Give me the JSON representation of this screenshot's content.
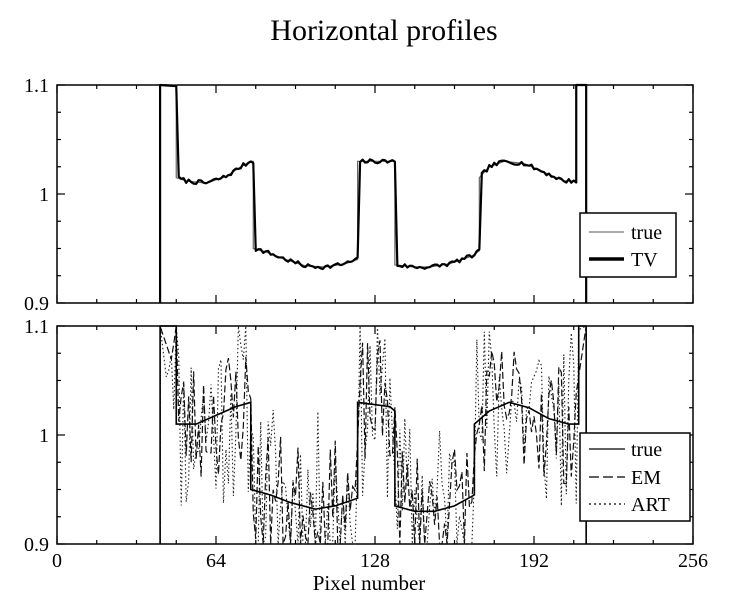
{
  "chart_data": [
    {
      "type": "line",
      "title": "Horizontal profiles",
      "panel": "top",
      "xlim": [
        0,
        256
      ],
      "ylim": [
        0.9,
        1.1
      ],
      "yticks": [
        "0.9",
        "1",
        "1.1"
      ],
      "legend": {
        "placement": "lower-right",
        "entries": [
          "true",
          "TV"
        ]
      },
      "series": [
        {
          "name": "true",
          "style": "thin-solid",
          "segments": "piecewise-profile"
        },
        {
          "name": "TV",
          "style": "thick-solid",
          "segments": "piecewise-profile"
        }
      ],
      "profile_points": [
        [
          41.5,
          0.9
        ],
        [
          41.5,
          1.1
        ],
        [
          48,
          1.1
        ],
        [
          48,
          1.015
        ],
        [
          52,
          1.012
        ],
        [
          60,
          1.01
        ],
        [
          68,
          1.016
        ],
        [
          74,
          1.025
        ],
        [
          78,
          1.03
        ],
        [
          79,
          1.03
        ],
        [
          79,
          0.95
        ],
        [
          84,
          0.947
        ],
        [
          92,
          0.94
        ],
        [
          100,
          0.934
        ],
        [
          108,
          0.933
        ],
        [
          116,
          0.936
        ],
        [
          121,
          0.94
        ],
        [
          121,
          1.03
        ],
        [
          136,
          1.03
        ],
        [
          136,
          0.935
        ],
        [
          144,
          0.933
        ],
        [
          150,
          0.933
        ],
        [
          158,
          0.936
        ],
        [
          167,
          0.943
        ],
        [
          170,
          0.948
        ],
        [
          170,
          1.015
        ],
        [
          174,
          1.025
        ],
        [
          180,
          1.03
        ],
        [
          188,
          1.028
        ],
        [
          196,
          1.02
        ],
        [
          204,
          1.012
        ],
        [
          209,
          1.012
        ],
        [
          209,
          1.1
        ],
        [
          213,
          1.1
        ],
        [
          213,
          0.9
        ]
      ]
    },
    {
      "type": "line",
      "panel": "bottom",
      "xlim": [
        0,
        256
      ],
      "ylim": [
        0.9,
        1.1
      ],
      "xticks": [
        "0",
        "64",
        "128",
        "192",
        "256"
      ],
      "yticks": [
        "0.9",
        "1",
        "1.1"
      ],
      "xlabel": "Pixel number",
      "legend": {
        "placement": "lower-right",
        "entries": [
          "true",
          "EM",
          "ART"
        ]
      },
      "series": [
        {
          "name": "true",
          "style": "solid"
        },
        {
          "name": "EM",
          "style": "dashed",
          "noise_amplitude": 0.06
        },
        {
          "name": "ART",
          "style": "dotted",
          "noise_amplitude": 0.09
        }
      ],
      "profile_points": [
        [
          41.5,
          0.9
        ],
        [
          41.5,
          1.1
        ],
        [
          48,
          1.1
        ],
        [
          48,
          1.01
        ],
        [
          56,
          1.01
        ],
        [
          64,
          1.018
        ],
        [
          72,
          1.026
        ],
        [
          78,
          1.03
        ],
        [
          78,
          0.95
        ],
        [
          86,
          0.945
        ],
        [
          94,
          0.938
        ],
        [
          104,
          0.932
        ],
        [
          112,
          0.935
        ],
        [
          121,
          0.942
        ],
        [
          121,
          1.03
        ],
        [
          134,
          1.026
        ],
        [
          136,
          1.022
        ],
        [
          136,
          0.935
        ],
        [
          144,
          0.93
        ],
        [
          152,
          0.93
        ],
        [
          160,
          0.935
        ],
        [
          168,
          0.945
        ],
        [
          168,
          1.01
        ],
        [
          174,
          1.022
        ],
        [
          182,
          1.03
        ],
        [
          190,
          1.025
        ],
        [
          198,
          1.015
        ],
        [
          206,
          1.01
        ],
        [
          210,
          1.01
        ],
        [
          210,
          1.1
        ],
        [
          213,
          1.1
        ],
        [
          213,
          0.9
        ]
      ]
    }
  ]
}
